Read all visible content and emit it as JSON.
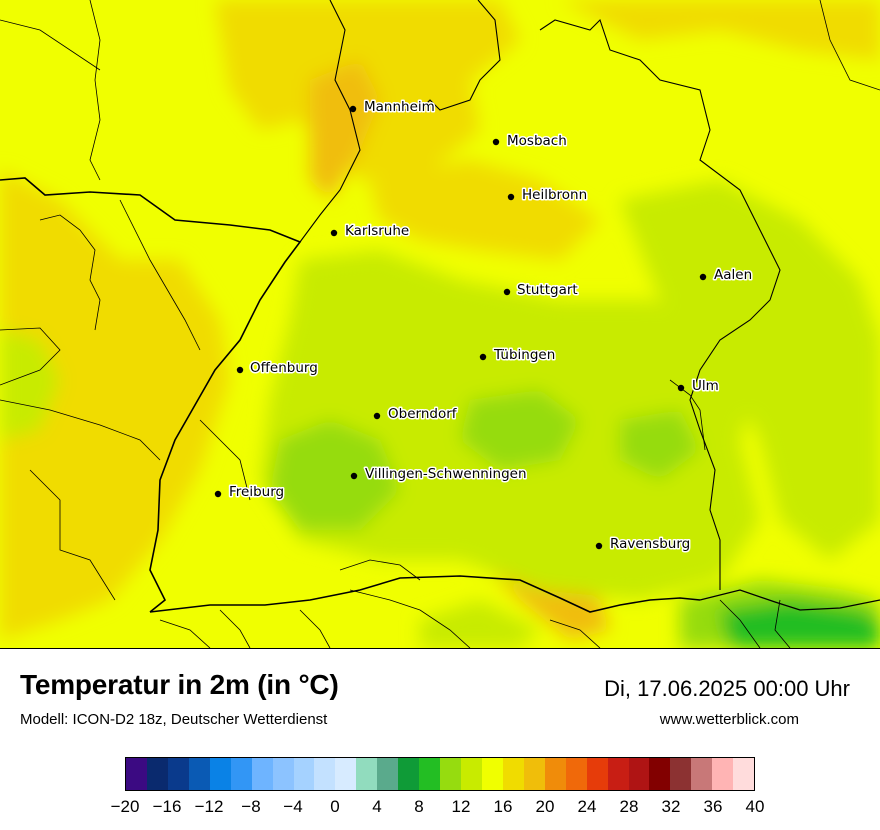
{
  "title": "Temperatur in 2m (in °C)",
  "subtitle": "Modell: ICON-D2 18z, Deutscher Wetterdienst",
  "datetime": "Di, 17.06.2025 00:00 Uhr",
  "website": "www.wetterblick.com",
  "cities": [
    {
      "name": "Mannheim"
    },
    {
      "name": "Mosbach"
    },
    {
      "name": "Heilbronn"
    },
    {
      "name": "Karlsruhe"
    },
    {
      "name": "Aalen"
    },
    {
      "name": "Stuttgart"
    },
    {
      "name": "Tübingen"
    },
    {
      "name": "Offenburg"
    },
    {
      "name": "Ulm"
    },
    {
      "name": "Oberndorf"
    },
    {
      "name": "Villingen-Schwenningen"
    },
    {
      "name": "Freiburg"
    },
    {
      "name": "Ravensburg"
    }
  ],
  "scale": {
    "unit": "°C",
    "colors": [
      "#3b0a82",
      "#0a2a6e",
      "#0a3a8c",
      "#0a5ab4",
      "#0a82e6",
      "#3296f5",
      "#6eb4ff",
      "#8cc3ff",
      "#a5d2ff",
      "#c3e1ff",
      "#d7ebff",
      "#91dcbe",
      "#5aaa8c",
      "#0f9b37",
      "#23be23",
      "#96dc0f",
      "#c8eb00",
      "#f0ff00",
      "#f0dc00",
      "#f0be0a",
      "#f08c0a",
      "#f0690a",
      "#e63c0a",
      "#c81e14",
      "#af1414",
      "#820000",
      "#8c3232",
      "#c87878",
      "#ffb4b4",
      "#ffdcdc"
    ],
    "tick_labels": [
      "−20",
      "−16",
      "−12",
      "−8",
      "−4",
      "0",
      "4",
      "8",
      "12",
      "16",
      "20",
      "24",
      "28",
      "32",
      "36",
      "40"
    ]
  }
}
